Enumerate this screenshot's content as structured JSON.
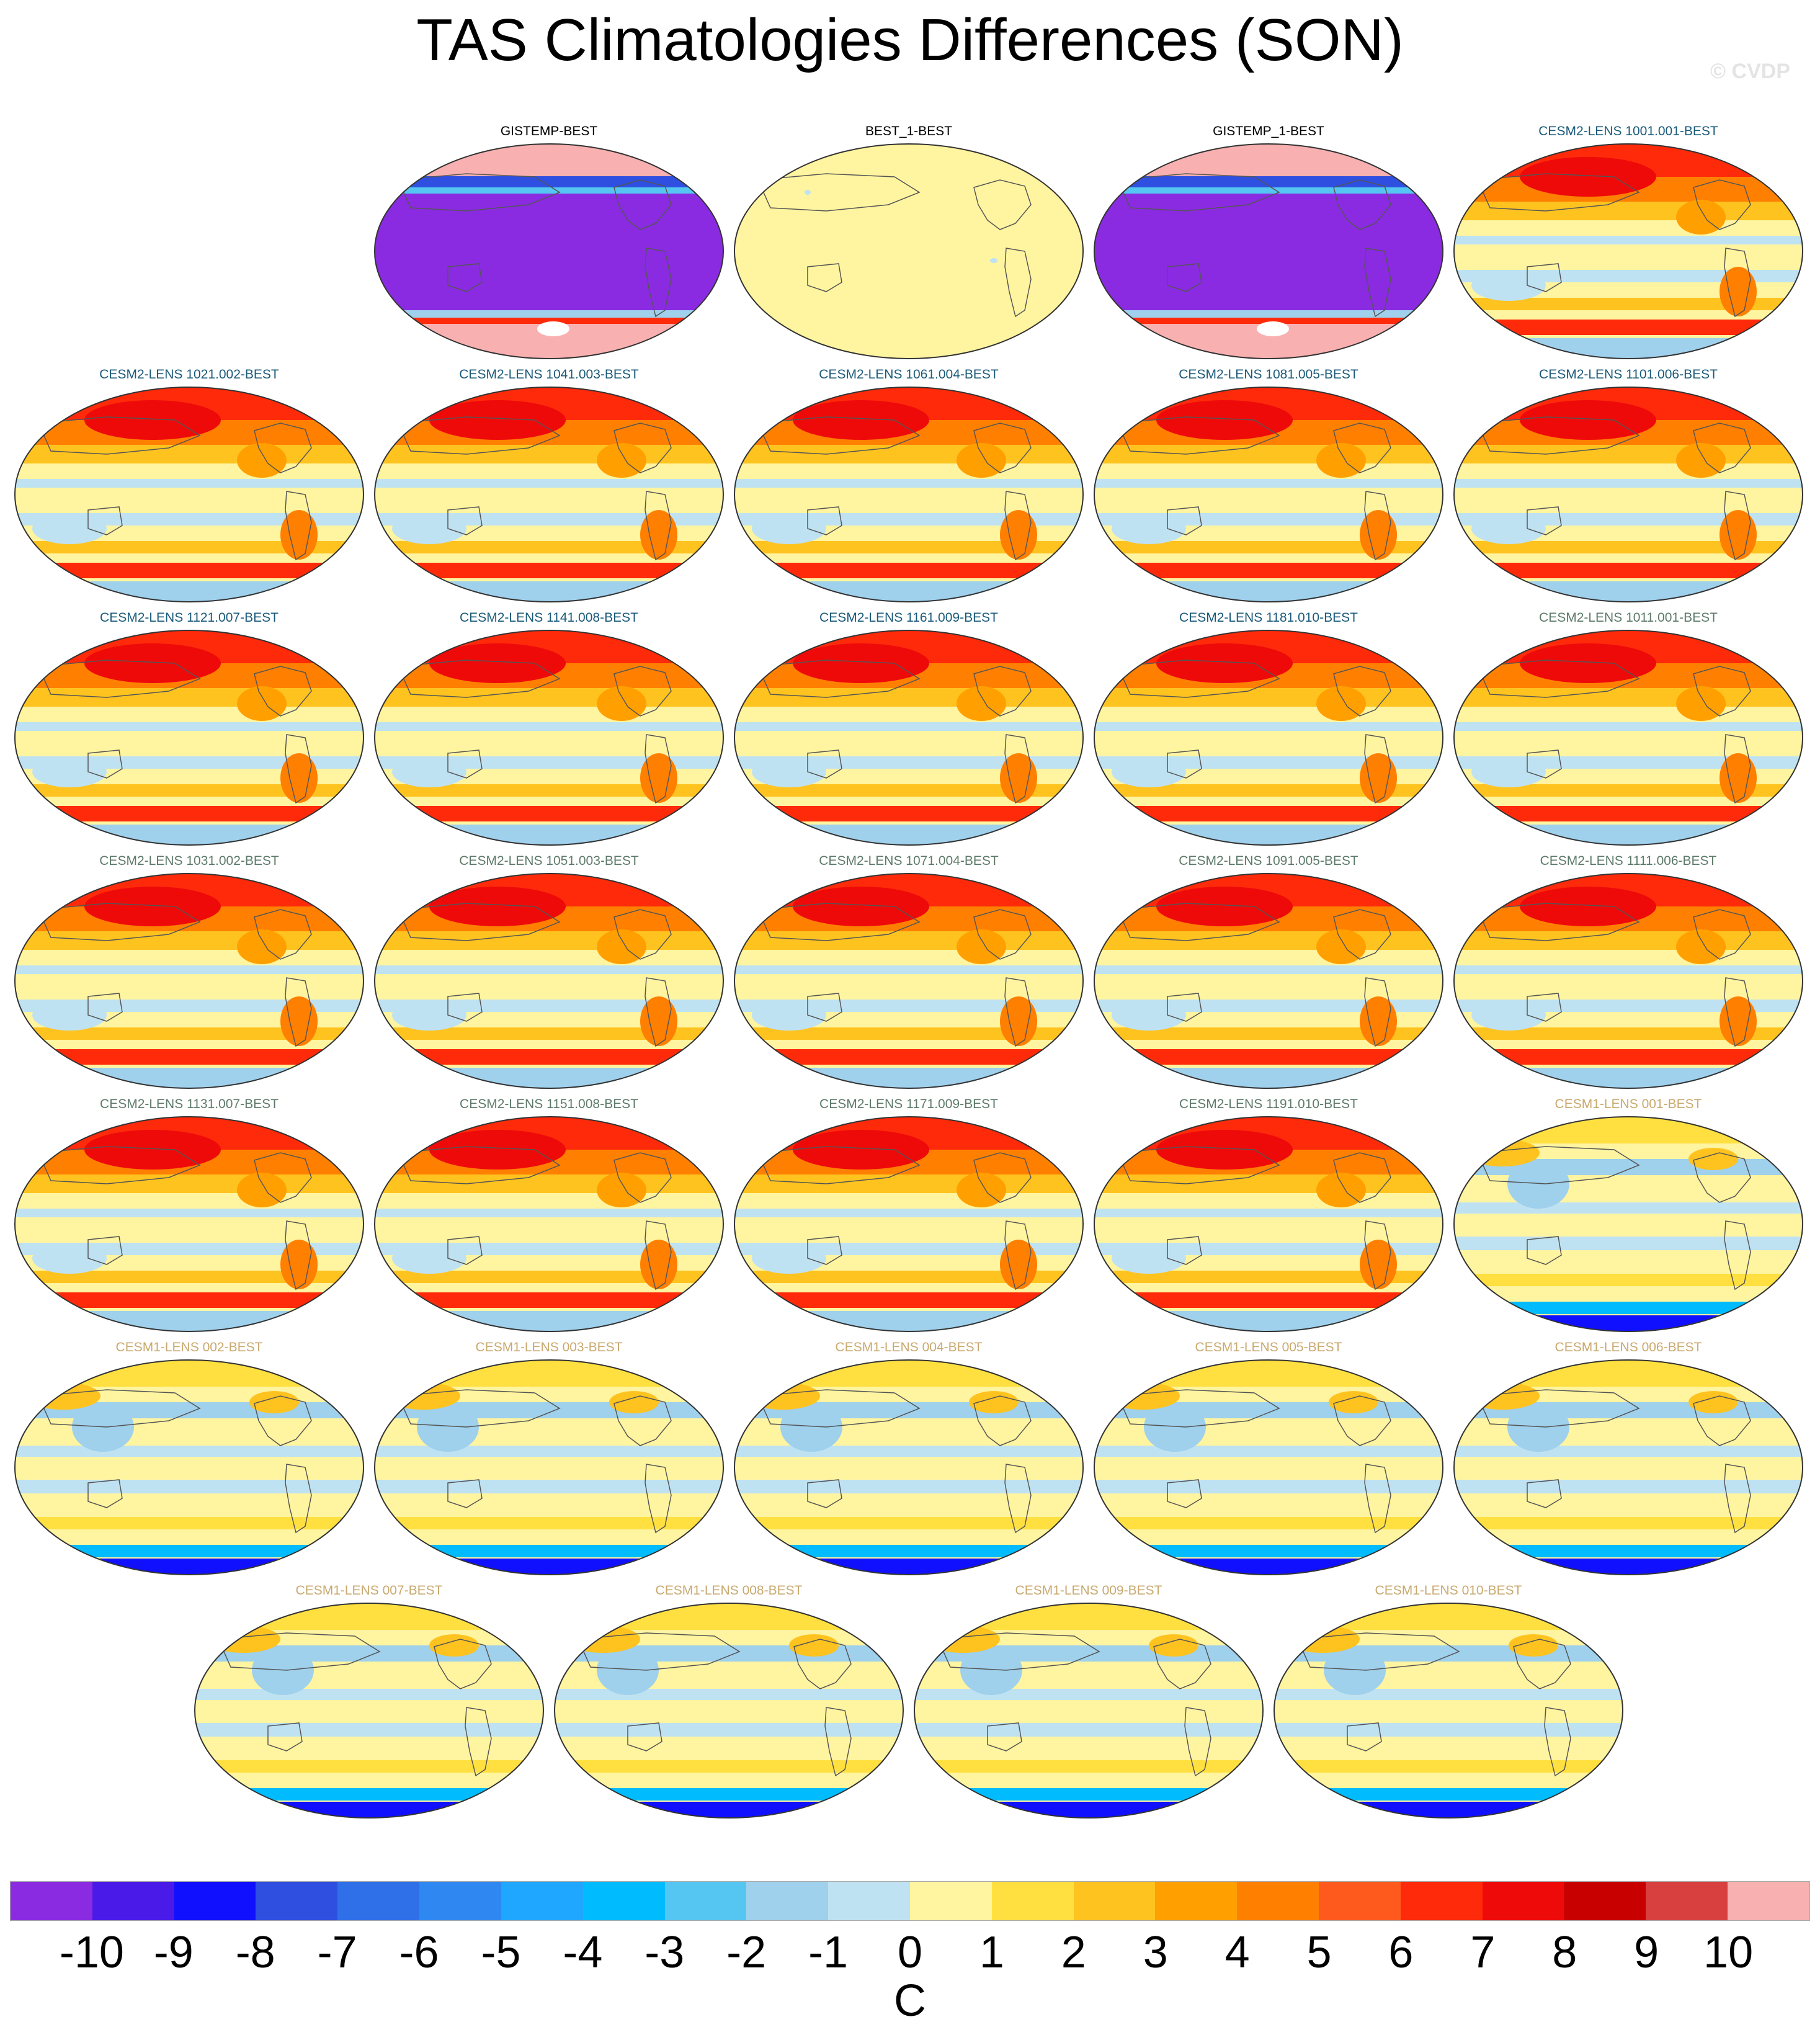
{
  "title": "TAS Climatologies Differences (SON)",
  "watermark": "© CVDP",
  "units": "C",
  "colors": {
    "title_gistemp": "#000000",
    "title_cesm2_a": "#1a5a7a",
    "title_cesm2_b": "#5d7a6a",
    "title_cesm1": "#c9a96e",
    "scale": [
      "#8a2be2",
      "#4a1ae8",
      "#1010ff",
      "#2e4fe0",
      "#2f6fe8",
      "#2f88f2",
      "#1fa6ff",
      "#00bcff",
      "#55c6f2",
      "#9fd0ec",
      "#bfe2f2",
      "#fff4a0",
      "#ffe040",
      "#ffc320",
      "#ffa000",
      "#ff8000",
      "#ff5a1e",
      "#ff2a0a",
      "#ef0a0a",
      "#c80000",
      "#d84040",
      "#f8b0b0"
    ]
  },
  "chart_data": {
    "type": "heatmap",
    "title": "TAS Climatologies Differences (SON)",
    "colorbar": {
      "label": "C",
      "tick_labels": [
        "-10",
        "-9",
        "-8",
        "-7",
        "-6",
        "-5",
        "-4",
        "-3",
        "-2",
        "-1",
        "0",
        "1",
        "2",
        "3",
        "4",
        "5",
        "6",
        "7",
        "8",
        "9",
        "10"
      ],
      "range": [
        -11,
        11
      ],
      "bins": 22
    },
    "panels": [
      {
        "label": "GISTEMP-BEST",
        "pattern": "gistemp",
        "group": "obs"
      },
      {
        "label": "BEST_1-BEST",
        "pattern": "zero",
        "group": "obs"
      },
      {
        "label": "GISTEMP_1-BEST",
        "pattern": "gistemp",
        "group": "obs"
      },
      {
        "label": "CESM2-LENS 1001.001-BEST",
        "pattern": "warm",
        "group": "cesm2a"
      },
      {
        "label": "CESM2-LENS 1021.002-BEST",
        "pattern": "warm",
        "group": "cesm2a"
      },
      {
        "label": "CESM2-LENS 1041.003-BEST",
        "pattern": "warm",
        "group": "cesm2a"
      },
      {
        "label": "CESM2-LENS 1061.004-BEST",
        "pattern": "warm",
        "group": "cesm2a"
      },
      {
        "label": "CESM2-LENS 1081.005-BEST",
        "pattern": "warm",
        "group": "cesm2a"
      },
      {
        "label": "CESM2-LENS 1101.006-BEST",
        "pattern": "warm",
        "group": "cesm2a"
      },
      {
        "label": "CESM2-LENS 1121.007-BEST",
        "pattern": "warm",
        "group": "cesm2a"
      },
      {
        "label": "CESM2-LENS 1141.008-BEST",
        "pattern": "warm",
        "group": "cesm2a"
      },
      {
        "label": "CESM2-LENS 1161.009-BEST",
        "pattern": "warm",
        "group": "cesm2a"
      },
      {
        "label": "CESM2-LENS 1181.010-BEST",
        "pattern": "warm",
        "group": "cesm2a"
      },
      {
        "label": "CESM2-LENS 1011.001-BEST",
        "pattern": "warm",
        "group": "cesm2b"
      },
      {
        "label": "CESM2-LENS 1031.002-BEST",
        "pattern": "warm",
        "group": "cesm2b"
      },
      {
        "label": "CESM2-LENS 1051.003-BEST",
        "pattern": "warm",
        "group": "cesm2b"
      },
      {
        "label": "CESM2-LENS 1071.004-BEST",
        "pattern": "warm",
        "group": "cesm2b"
      },
      {
        "label": "CESM2-LENS 1091.005-BEST",
        "pattern": "warm",
        "group": "cesm2b"
      },
      {
        "label": "CESM2-LENS 1111.006-BEST",
        "pattern": "warm",
        "group": "cesm2b"
      },
      {
        "label": "CESM2-LENS 1131.007-BEST",
        "pattern": "warm",
        "group": "cesm2b"
      },
      {
        "label": "CESM2-LENS 1151.008-BEST",
        "pattern": "warm",
        "group": "cesm2b"
      },
      {
        "label": "CESM2-LENS 1171.009-BEST",
        "pattern": "warm",
        "group": "cesm2b"
      },
      {
        "label": "CESM2-LENS 1191.010-BEST",
        "pattern": "warm",
        "group": "cesm2b"
      },
      {
        "label": "CESM1-LENS 001-BEST",
        "pattern": "mixed",
        "group": "cesm1"
      },
      {
        "label": "CESM1-LENS 002-BEST",
        "pattern": "mixed",
        "group": "cesm1"
      },
      {
        "label": "CESM1-LENS 003-BEST",
        "pattern": "mixed",
        "group": "cesm1"
      },
      {
        "label": "CESM1-LENS 004-BEST",
        "pattern": "mixed",
        "group": "cesm1"
      },
      {
        "label": "CESM1-LENS 005-BEST",
        "pattern": "mixed",
        "group": "cesm1"
      },
      {
        "label": "CESM1-LENS 006-BEST",
        "pattern": "mixed",
        "group": "cesm1"
      },
      {
        "label": "CESM1-LENS 007-BEST",
        "pattern": "mixed",
        "group": "cesm1"
      },
      {
        "label": "CESM1-LENS 008-BEST",
        "pattern": "mixed",
        "group": "cesm1"
      },
      {
        "label": "CESM1-LENS 009-BEST",
        "pattern": "mixed",
        "group": "cesm1"
      },
      {
        "label": "CESM1-LENS 010-BEST",
        "pattern": "mixed",
        "group": "cesm1"
      }
    ]
  }
}
